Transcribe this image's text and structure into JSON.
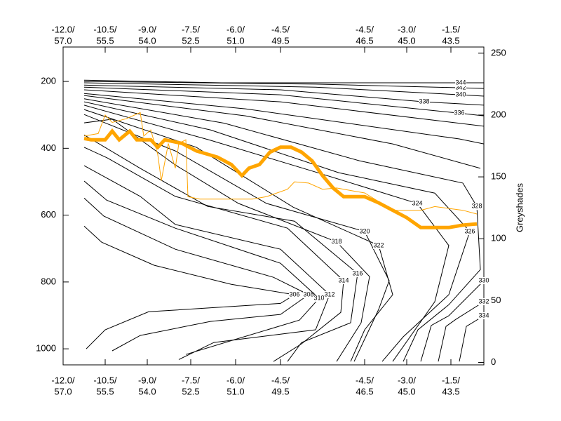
{
  "chart_data": {
    "type": "contour",
    "xlim": [
      0,
      600
    ],
    "xticks": [
      {
        "value": 0,
        "label": [
          "-12.0/",
          "57.0"
        ]
      },
      {
        "value": 60,
        "label": [
          "-10.5/",
          "55.5"
        ]
      },
      {
        "value": 120,
        "label": [
          "-9.0/",
          "54.0"
        ]
      },
      {
        "value": 182,
        "label": [
          "-7.5/",
          "52.5"
        ]
      },
      {
        "value": 246,
        "label": [
          "-6.0/",
          "51.0"
        ]
      },
      {
        "value": 310,
        "label": [
          "-4.5/",
          "49.5"
        ]
      },
      {
        "value": 430,
        "label": [
          "-4.5/",
          "46.5"
        ]
      },
      {
        "value": 490,
        "label": [
          "-3.0/",
          "45.0"
        ]
      },
      {
        "value": 553,
        "label": [
          "-1.5/",
          "43.5"
        ]
      }
    ],
    "ylim": [
      1048,
      97
    ],
    "yticks": [
      200,
      400,
      600,
      800,
      1000
    ],
    "y2lim": [
      -2,
      255
    ],
    "y2ticks": [
      0,
      50,
      100,
      150,
      200,
      250
    ],
    "y2label": "Greyshades",
    "contours": [
      {
        "level": 306,
        "x": [
          30,
          55,
          130,
          240,
          330,
          310,
          122,
          60,
          33
        ],
        "y": [
          633,
          681,
          750,
          807,
          838,
          864,
          889,
          943,
          1000
        ]
      },
      {
        "level": 308,
        "x": [
          30,
          58,
          160,
          300,
          350,
          310,
          210,
          110,
          70
        ],
        "y": [
          549,
          603,
          702,
          786,
          838,
          897,
          918,
          960,
          1006
        ]
      },
      {
        "level": 310,
        "x": [
          30,
          62,
          160,
          310,
          365,
          337,
          250,
          175
        ],
        "y": [
          498,
          555,
          639,
          744,
          849,
          914,
          969,
          1017
        ]
      },
      {
        "level": 312,
        "x": [
          30,
          110,
          160,
          310,
          380,
          360,
          215,
          165
        ],
        "y": [
          452,
          544,
          628,
          702,
          838,
          943,
          981,
          1032
        ]
      },
      {
        "level": 314,
        "x": [
          30,
          63,
          160,
          320,
          400,
          396,
          340,
          300
        ],
        "y": [
          397,
          429,
          544,
          639,
          796,
          891,
          985,
          1038
        ]
      },
      {
        "level": 316,
        "x": [
          30,
          110,
          206,
          330,
          420,
          410,
          340,
          320
        ],
        "y": [
          360,
          460,
          574,
          618,
          775,
          922,
          981,
          1038
        ]
      },
      {
        "level": 318,
        "x": [
          30,
          70,
          160,
          250,
          390,
          437,
          425,
          390
        ],
        "y": [
          324,
          313,
          450,
          565,
          680,
          784,
          922,
          1038
        ]
      },
      {
        "level": 320,
        "x": [
          30,
          160,
          290,
          430,
          465,
          450,
          415
        ],
        "y": [
          299,
          408,
          565,
          649,
          796,
          882,
          1038
        ]
      },
      {
        "level": 322,
        "x": [
          30,
          190,
          328,
          450,
          470,
          430,
          410
        ],
        "y": [
          284,
          397,
          576,
          691,
          838,
          943,
          1038
        ]
      },
      {
        "level": 324,
        "x": [
          30,
          210,
          360,
          505,
          550,
          530,
          470
        ],
        "y": [
          271,
          376,
          471,
          565,
          691,
          859,
          1038
        ]
      },
      {
        "level": 326,
        "x": [
          30,
          210,
          393,
          530,
          580,
          550,
          485,
          455
        ],
        "y": [
          261,
          345,
          473,
          534,
          649,
          838,
          964,
          1038
        ]
      },
      {
        "level": 328,
        "x": [
          30,
          230,
          422,
          570,
          590,
          595,
          550,
          506,
          485
        ],
        "y": [
          252,
          325,
          437,
          504,
          574,
          763,
          868,
          943,
          1038
        ]
      },
      {
        "level": 330,
        "x": [
          30,
          260,
          470,
          595,
          null,
          600,
          550,
          525,
          510
        ],
        "y": [
          242,
          303,
          387,
          460,
          null,
          796,
          901,
          930,
          1038
        ]
      },
      {
        "level": 332,
        "x": [
          30,
          260,
          565,
          600,
          null,
          600,
          560,
          546,
          535
        ],
        "y": [
          236,
          282,
          372,
          387,
          null,
          859,
          912,
          933,
          1038
        ]
      },
      {
        "level": 334,
        "x": [
          30,
          310,
          600,
          null,
          600,
          575,
          565
        ],
        "y": [
          225,
          261,
          334,
          null,
          901,
          933,
          1038
        ]
      },
      {
        "level": 336,
        "x": [
          30,
          310,
          565,
          600
        ],
        "y": [
          217,
          240,
          295,
          303
        ]
      },
      {
        "level": 338,
        "x": [
          30,
          310,
          515,
          600
        ],
        "y": [
          211,
          225,
          261,
          271
        ]
      },
      {
        "level": 340,
        "x": [
          30,
          360,
          567,
          600
        ],
        "y": [
          204,
          217,
          240,
          244
        ]
      },
      {
        "level": 342,
        "x": [
          30,
          360,
          567,
          600
        ],
        "y": [
          200,
          208,
          219,
          221
        ]
      },
      {
        "level": 344,
        "x": [
          30,
          226,
          567,
          600
        ],
        "y": [
          196,
          204,
          204,
          204
        ]
      }
    ],
    "series": [
      {
        "color": "#ffa500",
        "axis": "y2",
        "x": [
          30,
          40,
          60,
          70,
          80,
          95,
          105,
          125,
          135,
          145,
          170,
          190,
          220,
          240,
          255,
          265,
          280,
          295,
          310,
          325,
          340,
          355,
          370,
          385,
          400,
          430,
          450,
          470,
          490,
          510,
          550,
          570,
          590
        ],
        "values": [
          181,
          180,
          180,
          187,
          180,
          187,
          180,
          180,
          174,
          180,
          177,
          171,
          166,
          160,
          151,
          157,
          160,
          170,
          174,
          174,
          170,
          163,
          151,
          141,
          134,
          134,
          129,
          123,
          117,
          109,
          109,
          111,
          112
        ]
      },
      {
        "color": "#ffa500",
        "axis": "y2",
        "x": [
          30,
          50,
          60,
          70,
          90,
          110,
          115,
          125,
          135,
          140,
          150,
          160,
          165,
          175,
          178,
          195,
          230,
          270,
          290,
          320,
          330,
          350,
          370,
          390,
          410,
          430,
          470,
          510,
          530,
          570,
          590
        ],
        "values": [
          183,
          185,
          200,
          194,
          197,
          202,
          183,
          188,
          168,
          147,
          177,
          157,
          177,
          180,
          134,
          132,
          132,
          132,
          134,
          140,
          146,
          145,
          140,
          141,
          139,
          137,
          123,
          123,
          126,
          123,
          120
        ]
      }
    ]
  }
}
